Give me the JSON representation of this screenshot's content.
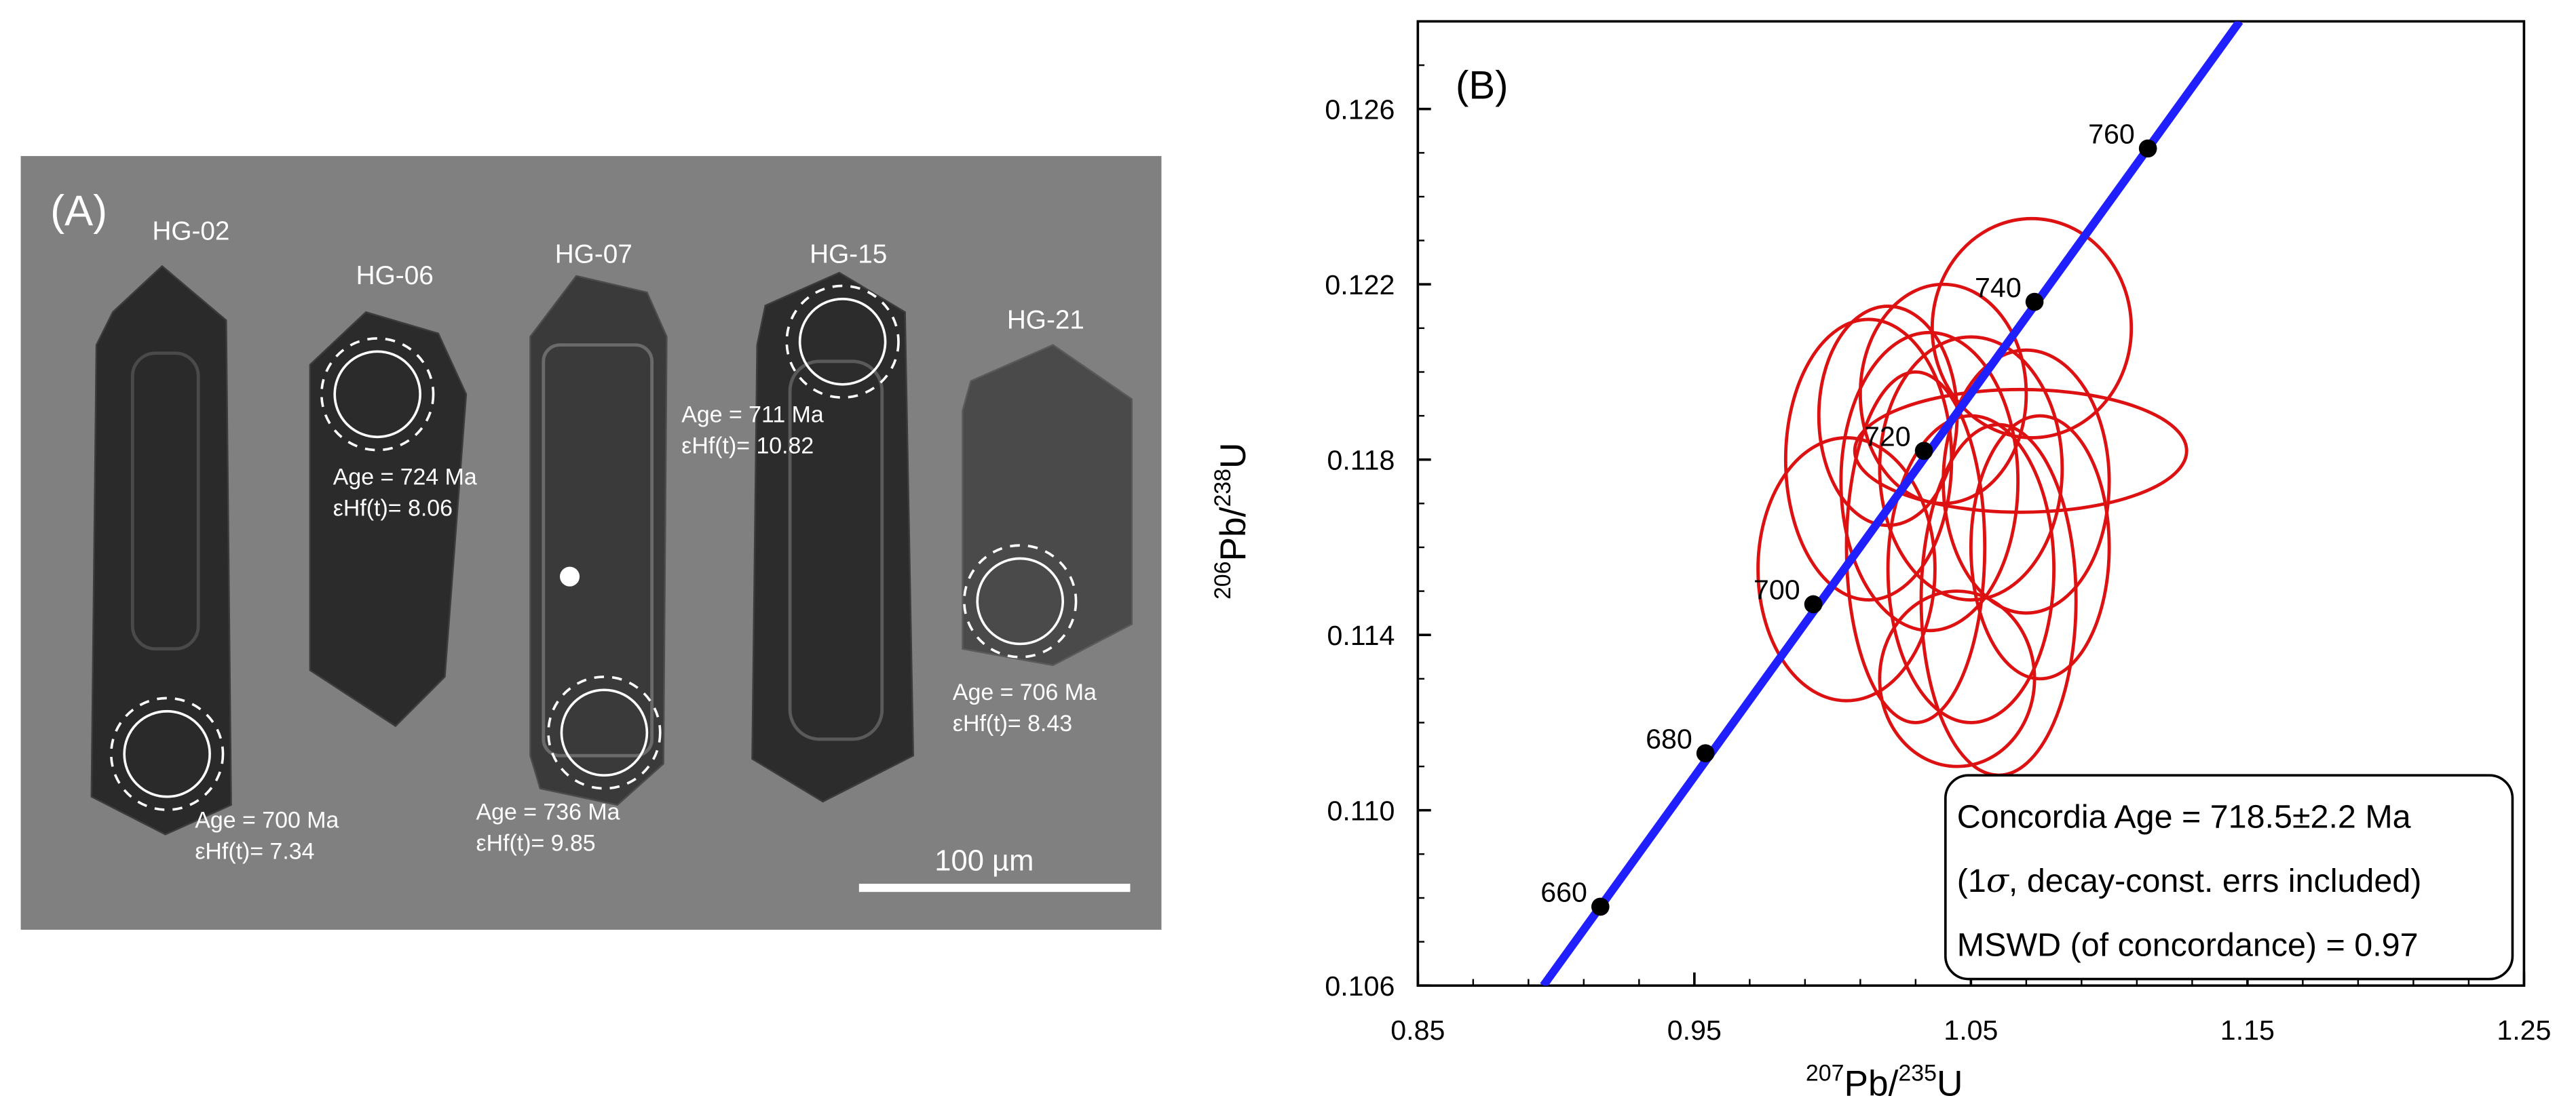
{
  "panel_a": {
    "label": "(A)",
    "background": "#808080",
    "scale_bar_label": "100 µm",
    "grains": [
      {
        "name": "HG-02",
        "age": "Age = 700 Ma",
        "ehf": "εHf(t)= 7.34"
      },
      {
        "name": "HG-06",
        "age": "Age = 724 Ma",
        "ehf": "εHf(t)= 8.06"
      },
      {
        "name": "HG-07",
        "age": "Age = 736 Ma",
        "ehf": "εHf(t)= 9.85"
      },
      {
        "name": "HG-15",
        "age": "Age = 711 Ma",
        "ehf": "εHf(t)= 10.82"
      },
      {
        "name": "HG-21",
        "age": "Age = 706 Ma",
        "ehf": "εHf(t)= 8.43"
      }
    ]
  },
  "chart_data": {
    "type": "scatter",
    "panel_label": "(B)",
    "title": "",
    "xlabel": {
      "base1": "207",
      "mid": "Pb/",
      "base2": "235",
      "end": "U"
    },
    "ylabel": {
      "base1": "206",
      "mid": "Pb/",
      "base2": "238",
      "end": "U"
    },
    "xlim": [
      0.85,
      1.25
    ],
    "ylim": [
      0.106,
      0.128
    ],
    "x_ticks": [
      0.85,
      0.95,
      1.05,
      1.15,
      1.25
    ],
    "x_tick_labels": [
      "0.85",
      "0.95",
      "1.05",
      "1.15",
      "1.25"
    ],
    "y_ticks": [
      0.106,
      0.11,
      0.114,
      0.118,
      0.122,
      0.126
    ],
    "y_tick_labels": [
      "0.106",
      "0.110",
      "0.114",
      "0.118",
      "0.122",
      "0.126"
    ],
    "concordia": {
      "color": "#1f1fff",
      "points": [
        {
          "age": "660",
          "x": 0.916,
          "y": 0.1078
        },
        {
          "age": "680",
          "x": 0.954,
          "y": 0.1113
        },
        {
          "age": "700",
          "x": 0.993,
          "y": 0.1147
        },
        {
          "age": "720",
          "x": 1.033,
          "y": 0.1182
        },
        {
          "age": "740",
          "x": 1.073,
          "y": 0.1216
        },
        {
          "age": "760",
          "x": 1.114,
          "y": 0.1251
        }
      ]
    },
    "ellipses": {
      "color": "#dd1111",
      "items": [
        {
          "cx": 1.072,
          "cy": 0.121,
          "rx": 0.036,
          "ry": 0.0025
        },
        {
          "cx": 1.068,
          "cy": 0.1182,
          "rx": 0.06,
          "ry": 0.0014
        },
        {
          "cx": 1.013,
          "cy": 0.118,
          "rx": 0.03,
          "ry": 0.0032
        },
        {
          "cx": 1.035,
          "cy": 0.1175,
          "rx": 0.032,
          "ry": 0.0034
        },
        {
          "cx": 1.05,
          "cy": 0.1178,
          "rx": 0.033,
          "ry": 0.003
        },
        {
          "cx": 1.07,
          "cy": 0.1175,
          "rx": 0.03,
          "ry": 0.003
        },
        {
          "cx": 1.005,
          "cy": 0.1155,
          "rx": 0.032,
          "ry": 0.003
        },
        {
          "cx": 1.03,
          "cy": 0.116,
          "rx": 0.025,
          "ry": 0.004
        },
        {
          "cx": 1.05,
          "cy": 0.1155,
          "rx": 0.03,
          "ry": 0.0035
        },
        {
          "cx": 1.06,
          "cy": 0.1148,
          "rx": 0.028,
          "ry": 0.004
        },
        {
          "cx": 1.045,
          "cy": 0.113,
          "rx": 0.028,
          "ry": 0.002
        },
        {
          "cx": 1.075,
          "cy": 0.116,
          "rx": 0.025,
          "ry": 0.003
        },
        {
          "cx": 1.02,
          "cy": 0.119,
          "rx": 0.025,
          "ry": 0.0025
        },
        {
          "cx": 1.04,
          "cy": 0.1195,
          "rx": 0.03,
          "ry": 0.0025
        }
      ]
    },
    "result_box": {
      "line1": "Concordia Age = 718.5±2.2 Ma",
      "line2": {
        "pre": "(1",
        "sigma": "σ",
        "post": ", decay-const. errs included)"
      },
      "line3": "MSWD (of concordance) = 0.97"
    }
  }
}
